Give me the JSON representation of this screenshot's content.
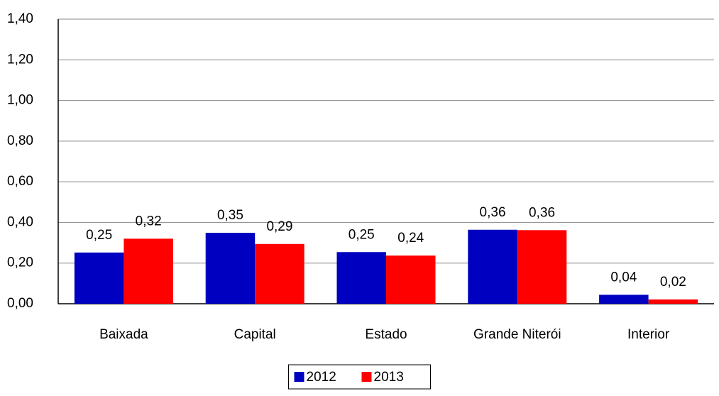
{
  "chart_data": {
    "type": "bar",
    "categories": [
      "Baixada",
      "Capital",
      "Estado",
      "Grande Niterói",
      "Interior"
    ],
    "series": [
      {
        "name": "2012",
        "color": "#0000c0",
        "values": [
          0.252,
          0.349,
          0.254,
          0.364,
          0.044
        ],
        "value_labels": [
          "0,25",
          "0,35",
          "0,25",
          "0,36",
          "0,04"
        ]
      },
      {
        "name": "2013",
        "color": "#ff0000",
        "values": [
          0.32,
          0.294,
          0.237,
          0.362,
          0.021
        ],
        "value_labels": [
          "0,32",
          "0,29",
          "0,24",
          "0,36",
          "0,02"
        ]
      }
    ],
    "ylim": [
      0,
      1.4
    ],
    "yticks": [
      {
        "value": 0,
        "label": "0,00"
      },
      {
        "value": 0.2,
        "label": "0,20"
      },
      {
        "value": 0.4,
        "label": "0,40"
      },
      {
        "value": 0.6,
        "label": "0,60"
      },
      {
        "value": 0.8,
        "label": "0,80"
      },
      {
        "value": 1.0,
        "label": "1,00"
      },
      {
        "value": 1.2,
        "label": "1,20"
      },
      {
        "value": 1.4,
        "label": "1,40"
      }
    ],
    "grid": true,
    "legend": "bottom"
  }
}
